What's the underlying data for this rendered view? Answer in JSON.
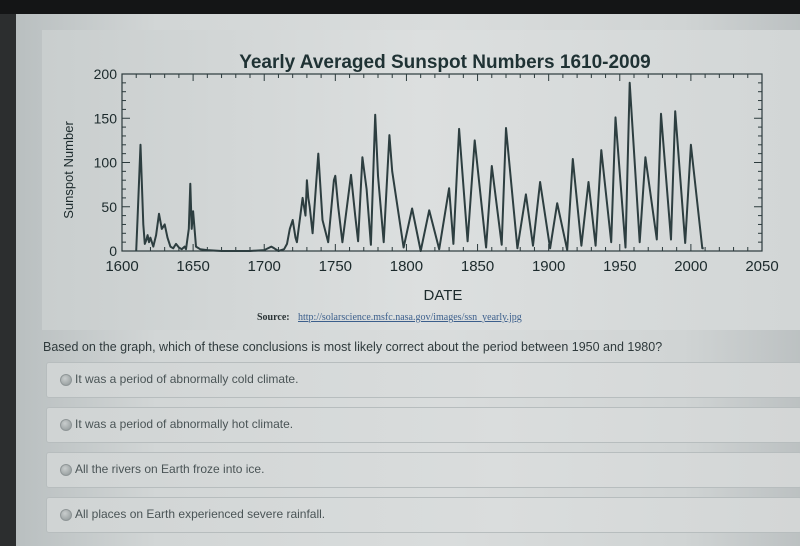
{
  "chart": {
    "source_label": "Source:",
    "source_url": "http://solarscience.msfc.nasa.gov/images/ssn_yearly.jpg"
  },
  "chart_data": {
    "type": "line",
    "title": "Yearly Averaged Sunspot Numbers 1610-2009",
    "xlabel": "DATE",
    "ylabel": "Sunspot Number",
    "xlim": [
      1600,
      2050
    ],
    "ylim": [
      0,
      200
    ],
    "xticks": [
      1600,
      1650,
      1700,
      1750,
      1800,
      1850,
      1900,
      1950,
      2000,
      2050
    ],
    "yticks": [
      0,
      50,
      100,
      150,
      200
    ],
    "grid": false,
    "line_color": "#2d3e40",
    "series": [
      {
        "points": [
          [
            1610,
            0
          ],
          [
            1611,
            38
          ],
          [
            1613,
            120
          ],
          [
            1614,
            75
          ],
          [
            1615,
            30
          ],
          [
            1616,
            8
          ],
          [
            1617,
            12
          ],
          [
            1618,
            18
          ],
          [
            1619,
            10
          ],
          [
            1620,
            15
          ],
          [
            1622,
            5
          ],
          [
            1624,
            18
          ],
          [
            1626,
            42
          ],
          [
            1628,
            25
          ],
          [
            1630,
            30
          ],
          [
            1632,
            15
          ],
          [
            1634,
            5
          ],
          [
            1636,
            3
          ],
          [
            1638,
            8
          ],
          [
            1640,
            4
          ],
          [
            1642,
            2
          ],
          [
            1644,
            5
          ],
          [
            1645,
            2
          ],
          [
            1647,
            25
          ],
          [
            1648,
            76
          ],
          [
            1649,
            25
          ],
          [
            1650,
            45
          ],
          [
            1652,
            5
          ],
          [
            1655,
            2
          ],
          [
            1660,
            1
          ],
          [
            1670,
            0
          ],
          [
            1680,
            0
          ],
          [
            1690,
            0
          ],
          [
            1700,
            1
          ],
          [
            1705,
            5
          ],
          [
            1707,
            3
          ],
          [
            1710,
            0
          ],
          [
            1714,
            2
          ],
          [
            1716,
            8
          ],
          [
            1718,
            25
          ],
          [
            1720,
            35
          ],
          [
            1722,
            15
          ],
          [
            1723,
            10
          ],
          [
            1727,
            60
          ],
          [
            1729,
            40
          ],
          [
            1730,
            80
          ],
          [
            1731,
            60
          ],
          [
            1732,
            50
          ],
          [
            1734,
            20
          ],
          [
            1738,
            110
          ],
          [
            1741,
            35
          ],
          [
            1745,
            10
          ],
          [
            1749,
            80
          ],
          [
            1750,
            85
          ],
          [
            1752,
            50
          ],
          [
            1755,
            10
          ],
          [
            1761,
            86
          ],
          [
            1764,
            40
          ],
          [
            1766,
            11
          ],
          [
            1769,
            106
          ],
          [
            1772,
            70
          ],
          [
            1775,
            7
          ],
          [
            1778,
            154
          ],
          [
            1780,
            85
          ],
          [
            1784,
            10
          ],
          [
            1788,
            131
          ],
          [
            1790,
            90
          ],
          [
            1798,
            4
          ],
          [
            1804,
            48
          ],
          [
            1810,
            0
          ],
          [
            1816,
            46
          ],
          [
            1823,
            2
          ],
          [
            1830,
            71
          ],
          [
            1833,
            8
          ],
          [
            1837,
            138
          ],
          [
            1843,
            11
          ],
          [
            1848,
            125
          ],
          [
            1856,
            4
          ],
          [
            1860,
            96
          ],
          [
            1867,
            7
          ],
          [
            1870,
            139
          ],
          [
            1878,
            3
          ],
          [
            1884,
            64
          ],
          [
            1889,
            6
          ],
          [
            1894,
            78
          ],
          [
            1901,
            3
          ],
          [
            1906,
            54
          ],
          [
            1913,
            1
          ],
          [
            1917,
            104
          ],
          [
            1923,
            6
          ],
          [
            1928,
            78
          ],
          [
            1933,
            6
          ],
          [
            1937,
            114
          ],
          [
            1944,
            10
          ],
          [
            1947,
            151
          ],
          [
            1954,
            4
          ],
          [
            1957,
            190
          ],
          [
            1964,
            10
          ],
          [
            1968,
            106
          ],
          [
            1976,
            13
          ],
          [
            1979,
            155
          ],
          [
            1986,
            13
          ],
          [
            1989,
            158
          ],
          [
            1996,
            9
          ],
          [
            2000,
            120
          ],
          [
            2008,
            3
          ],
          [
            2009,
            3
          ]
        ]
      }
    ]
  },
  "question": {
    "text": "Based on the graph, which of these conclusions is most likely correct about the period between 1950 and 1980?"
  },
  "options": [
    {
      "label": "It was a period of abnormally cold climate."
    },
    {
      "label": "It was a period of abnormally hot climate."
    },
    {
      "label": "All the rivers on Earth froze into ice."
    },
    {
      "label": "All places on Earth experienced severe rainfall."
    }
  ]
}
